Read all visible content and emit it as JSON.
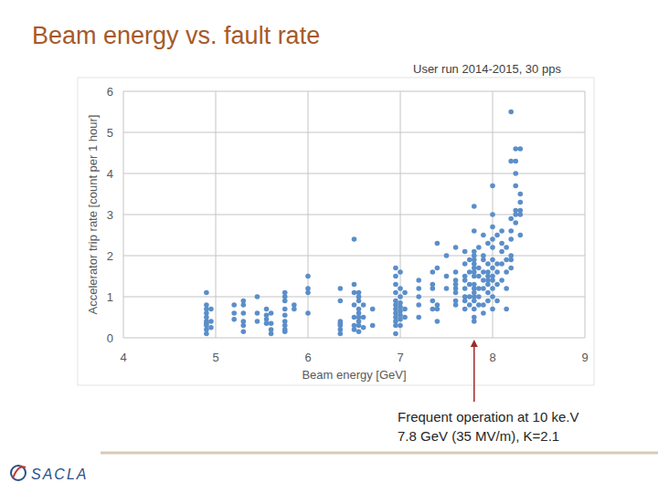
{
  "slide": {
    "title": "Beam energy vs. fault rate",
    "subtitle": "User run 2014-2015, 30 pps",
    "logo": "SACLA"
  },
  "chart_data": {
    "type": "scatter",
    "x_label": "Beam energy [GeV]",
    "y_label": "Accelerator trip rate [count per 1 hour]",
    "color": "#5b8ec9",
    "marker": "circle",
    "grid": true,
    "xlim": [
      4,
      9
    ],
    "xticks": [
      4,
      5,
      6,
      7,
      8,
      9
    ],
    "ylim": [
      0,
      6
    ],
    "yticks": [
      0,
      1,
      2,
      3,
      4,
      5,
      6
    ],
    "annotation": {
      "text": [
        "Frequent operation at 10 ke.V",
        "7.8 GeV (35 MV/m), K=2.1"
      ],
      "x": 7.8,
      "y": 0
    },
    "x": [
      4.9,
      4.9,
      4.9,
      4.9,
      4.9,
      4.9,
      4.9,
      4.9,
      4.9,
      4.9,
      4.95,
      4.95,
      4.95,
      5.2,
      5.2,
      5.2,
      5.3,
      5.3,
      5.3,
      5.3,
      5.3,
      5.3,
      5.45,
      5.45,
      5.45,
      5.55,
      5.55,
      5.55,
      5.55,
      5.6,
      5.6,
      5.6,
      5.6,
      5.75,
      5.75,
      5.75,
      5.75,
      5.75,
      5.75,
      5.75,
      5.75,
      5.75,
      5.85,
      5.85,
      6.0,
      6.0,
      6.0,
      6.0,
      6.35,
      6.35,
      6.35,
      6.35,
      6.35,
      6.35,
      6.35,
      6.5,
      6.5,
      6.5,
      6.5,
      6.5,
      6.5,
      6.5,
      6.55,
      6.55,
      6.55,
      6.55,
      6.55,
      6.55,
      6.55,
      6.55,
      6.55,
      6.6,
      6.6,
      6.6,
      6.7,
      6.7,
      6.95,
      6.95,
      6.95,
      6.95,
      6.95,
      6.95,
      6.95,
      6.95,
      6.95,
      6.95,
      6.95,
      6.95,
      7.0,
      7.0,
      7.0,
      7.0,
      7.0,
      7.0,
      7.0,
      7.0,
      7.0,
      7.05,
      7.05,
      7.05,
      7.2,
      7.2,
      7.2,
      7.2,
      7.2,
      7.35,
      7.35,
      7.35,
      7.35,
      7.35,
      7.4,
      7.4,
      7.4,
      7.4,
      7.4,
      7.5,
      7.5,
      7.5,
      7.6,
      7.6,
      7.6,
      7.6,
      7.6,
      7.6,
      7.6,
      7.6,
      7.7,
      7.7,
      7.7,
      7.7,
      7.7,
      7.7,
      7.7,
      7.7,
      7.75,
      7.75,
      7.75,
      7.75,
      7.75,
      7.8,
      7.8,
      7.8,
      7.8,
      7.8,
      7.8,
      7.8,
      7.8,
      7.8,
      7.8,
      7.8,
      7.8,
      7.8,
      7.8,
      7.8,
      7.8,
      7.8,
      7.85,
      7.85,
      7.85,
      7.85,
      7.85,
      7.85,
      7.9,
      7.9,
      7.9,
      7.9,
      7.9,
      7.9,
      7.9,
      7.9,
      7.95,
      7.95,
      7.95,
      7.95,
      7.95,
      7.95,
      7.95,
      7.95,
      8.0,
      8.0,
      8.0,
      8.0,
      8.0,
      8.0,
      8.0,
      8.0,
      8.0,
      8.0,
      8.0,
      8.0,
      8.05,
      8.05,
      8.05,
      8.05,
      8.05,
      8.1,
      8.1,
      8.1,
      8.1,
      8.1,
      8.15,
      8.15,
      8.15,
      8.15,
      8.15,
      8.2,
      8.2,
      8.2,
      8.2,
      8.2,
      8.2,
      8.2,
      8.2,
      8.25,
      8.25,
      8.25,
      8.25,
      8.25,
      8.25,
      8.25,
      8.3,
      8.3,
      8.3,
      8.3,
      8.3,
      8.3
    ],
    "values": [
      1.1,
      0.8,
      0.7,
      0.6,
      0.5,
      0.4,
      0.35,
      0.3,
      0.2,
      0.1,
      0.7,
      0.4,
      0.25,
      0.8,
      0.6,
      0.45,
      0.9,
      0.8,
      0.6,
      0.4,
      0.3,
      0.15,
      1.0,
      0.6,
      0.4,
      0.7,
      0.55,
      0.45,
      0.35,
      0.6,
      0.35,
      0.2,
      0.1,
      1.1,
      1.0,
      0.9,
      0.7,
      0.55,
      0.4,
      0.3,
      0.2,
      0.15,
      0.8,
      0.7,
      1.5,
      1.2,
      1.1,
      0.6,
      1.2,
      0.9,
      0.4,
      0.35,
      0.3,
      0.2,
      0.1,
      2.4,
      1.3,
      1.1,
      0.8,
      0.5,
      0.3,
      0.2,
      1.1,
      1.0,
      0.9,
      0.7,
      0.6,
      0.5,
      0.4,
      0.3,
      0.15,
      0.8,
      0.5,
      0.25,
      0.7,
      0.3,
      1.7,
      1.5,
      1.3,
      1.1,
      0.9,
      0.8,
      0.7,
      0.6,
      0.5,
      0.4,
      0.3,
      0.1,
      1.6,
      1.2,
      1.0,
      0.85,
      0.75,
      0.65,
      0.55,
      0.45,
      0.3,
      1.1,
      0.7,
      0.5,
      1.4,
      1.2,
      1.0,
      0.8,
      0.5,
      1.6,
      1.3,
      1.2,
      0.9,
      0.7,
      2.3,
      1.7,
      0.8,
      0.7,
      0.4,
      2.0,
      1.5,
      1.2,
      2.2,
      1.6,
      1.4,
      1.3,
      1.2,
      1.1,
      0.9,
      0.8,
      2.1,
      1.8,
      1.5,
      1.4,
      1.2,
      1.0,
      0.9,
      0.7,
      1.9,
      1.6,
      1.3,
      1.0,
      0.8,
      3.2,
      2.6,
      2.1,
      2.0,
      1.9,
      1.8,
      1.7,
      1.6,
      1.5,
      1.3,
      1.2,
      1.1,
      1.0,
      0.9,
      0.7,
      0.5,
      0.4,
      2.2,
      1.7,
      1.5,
      1.2,
      1.0,
      0.8,
      2.5,
      2.0,
      1.9,
      1.6,
      1.4,
      1.2,
      0.8,
      0.6,
      2.3,
      1.8,
      1.6,
      1.5,
      1.4,
      1.3,
      1.1,
      0.9,
      3.7,
      3.0,
      2.7,
      2.4,
      2.2,
      1.9,
      1.7,
      1.5,
      1.4,
      1.2,
      1.0,
      0.7,
      2.5,
      1.8,
      1.6,
      1.3,
      0.9,
      2.6,
      2.3,
      2.1,
      1.8,
      1.4,
      2.2,
      1.9,
      1.6,
      1.2,
      0.7,
      5.5,
      4.3,
      2.9,
      2.6,
      2.4,
      2.0,
      1.9,
      1.7,
      4.6,
      4.3,
      4.0,
      3.7,
      3.1,
      3.0,
      2.8,
      4.6,
      3.5,
      3.3,
      3.1,
      3.0,
      2.5
    ]
  }
}
